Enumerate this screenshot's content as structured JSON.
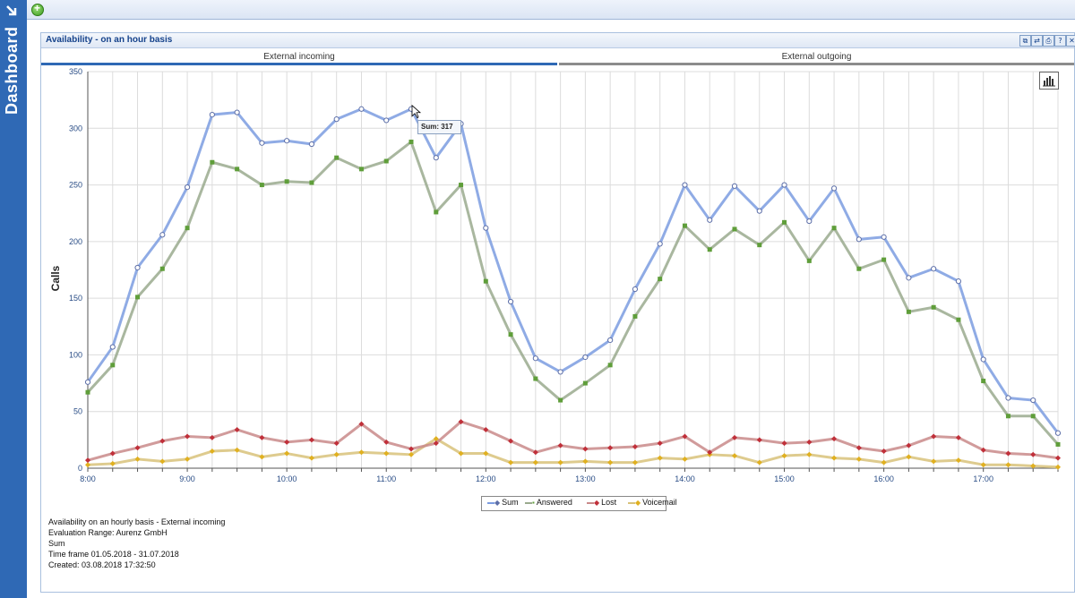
{
  "sidebar": {
    "title": "Dashboard",
    "arrow_icon": "arrow-down-right-icon"
  },
  "toolbar": {
    "add_icon": "add-icon"
  },
  "panel": {
    "title": "Availability - on an hour basis",
    "buttons": [
      "copy-icon",
      "refresh-icon",
      "print-icon",
      "help-icon",
      "close-icon"
    ],
    "tabs": [
      {
        "label": "External incoming",
        "active": true
      },
      {
        "label": "External outgoing",
        "active": false
      }
    ]
  },
  "tooltip": {
    "text": "Sum: 317"
  },
  "info": {
    "lines": [
      "Availability on an hourly basis - External incoming",
      "Evaluation Range: Aurenz GmbH",
      "Sum",
      "Time frame 01.05.2018 - 31.07.2018",
      "Created: 03.08.2018 17:32:50"
    ]
  },
  "chart_data": {
    "type": "line",
    "ylabel": "Calls",
    "ylim": [
      0,
      350
    ],
    "yticks": [
      0,
      50,
      100,
      150,
      200,
      250,
      300,
      350
    ],
    "xlim": [
      8.0,
      17.75
    ],
    "xticks": [
      "8:00",
      "9:00",
      "10:00",
      "11:00",
      "12:00",
      "13:00",
      "14:00",
      "15:00",
      "16:00",
      "17:00"
    ],
    "x": [
      8.0,
      8.25,
      8.5,
      8.75,
      9.0,
      9.25,
      9.5,
      9.75,
      10.0,
      10.25,
      10.5,
      10.75,
      11.0,
      11.25,
      11.5,
      11.75,
      12.0,
      12.25,
      12.5,
      12.75,
      13.0,
      13.25,
      13.5,
      13.75,
      14.0,
      14.25,
      14.5,
      14.75,
      15.0,
      15.25,
      15.5,
      15.75,
      16.0,
      16.25,
      16.5,
      16.75,
      17.0,
      17.25,
      17.5,
      17.75
    ],
    "grid": true,
    "legend_placement": "bottom-center",
    "series": [
      {
        "name": "Sum",
        "color": "#7b9ce0",
        "marker": "circle",
        "values": [
          76,
          107,
          177,
          206,
          248,
          312,
          314,
          287,
          289,
          286,
          308,
          317,
          307,
          317,
          274,
          304,
          212,
          147,
          97,
          85,
          98,
          113,
          158,
          198,
          250,
          219,
          249,
          227,
          250,
          218,
          247,
          202,
          204,
          168,
          176,
          165,
          96,
          62,
          60,
          31
        ]
      },
      {
        "name": "Answered",
        "color": "#9aaa8e",
        "marker": "square",
        "values": [
          67,
          91,
          151,
          176,
          212,
          270,
          264,
          250,
          253,
          252,
          274,
          264,
          271,
          288,
          226,
          250,
          165,
          118,
          79,
          60,
          75,
          91,
          134,
          167,
          214,
          193,
          211,
          197,
          217,
          183,
          212,
          176,
          184,
          138,
          142,
          131,
          77,
          46,
          46,
          21
        ]
      },
      {
        "name": "Lost",
        "color": "#c98a8a",
        "marker": "diamond",
        "values": [
          7,
          13,
          18,
          24,
          28,
          27,
          34,
          27,
          23,
          25,
          22,
          39,
          23,
          17,
          22,
          41,
          34,
          24,
          14,
          20,
          17,
          18,
          19,
          22,
          28,
          14,
          27,
          25,
          22,
          23,
          26,
          18,
          15,
          20,
          28,
          27,
          16,
          13,
          12,
          9
        ]
      },
      {
        "name": "Voicemail",
        "color": "#d8c27a",
        "marker": "diamond",
        "values": [
          3,
          4,
          8,
          6,
          8,
          15,
          16,
          10,
          13,
          9,
          12,
          14,
          13,
          12,
          26,
          13,
          13,
          5,
          5,
          5,
          6,
          5,
          5,
          9,
          8,
          12,
          11,
          5,
          11,
          12,
          9,
          8,
          5,
          10,
          6,
          7,
          3,
          3,
          2,
          1
        ]
      }
    ]
  }
}
